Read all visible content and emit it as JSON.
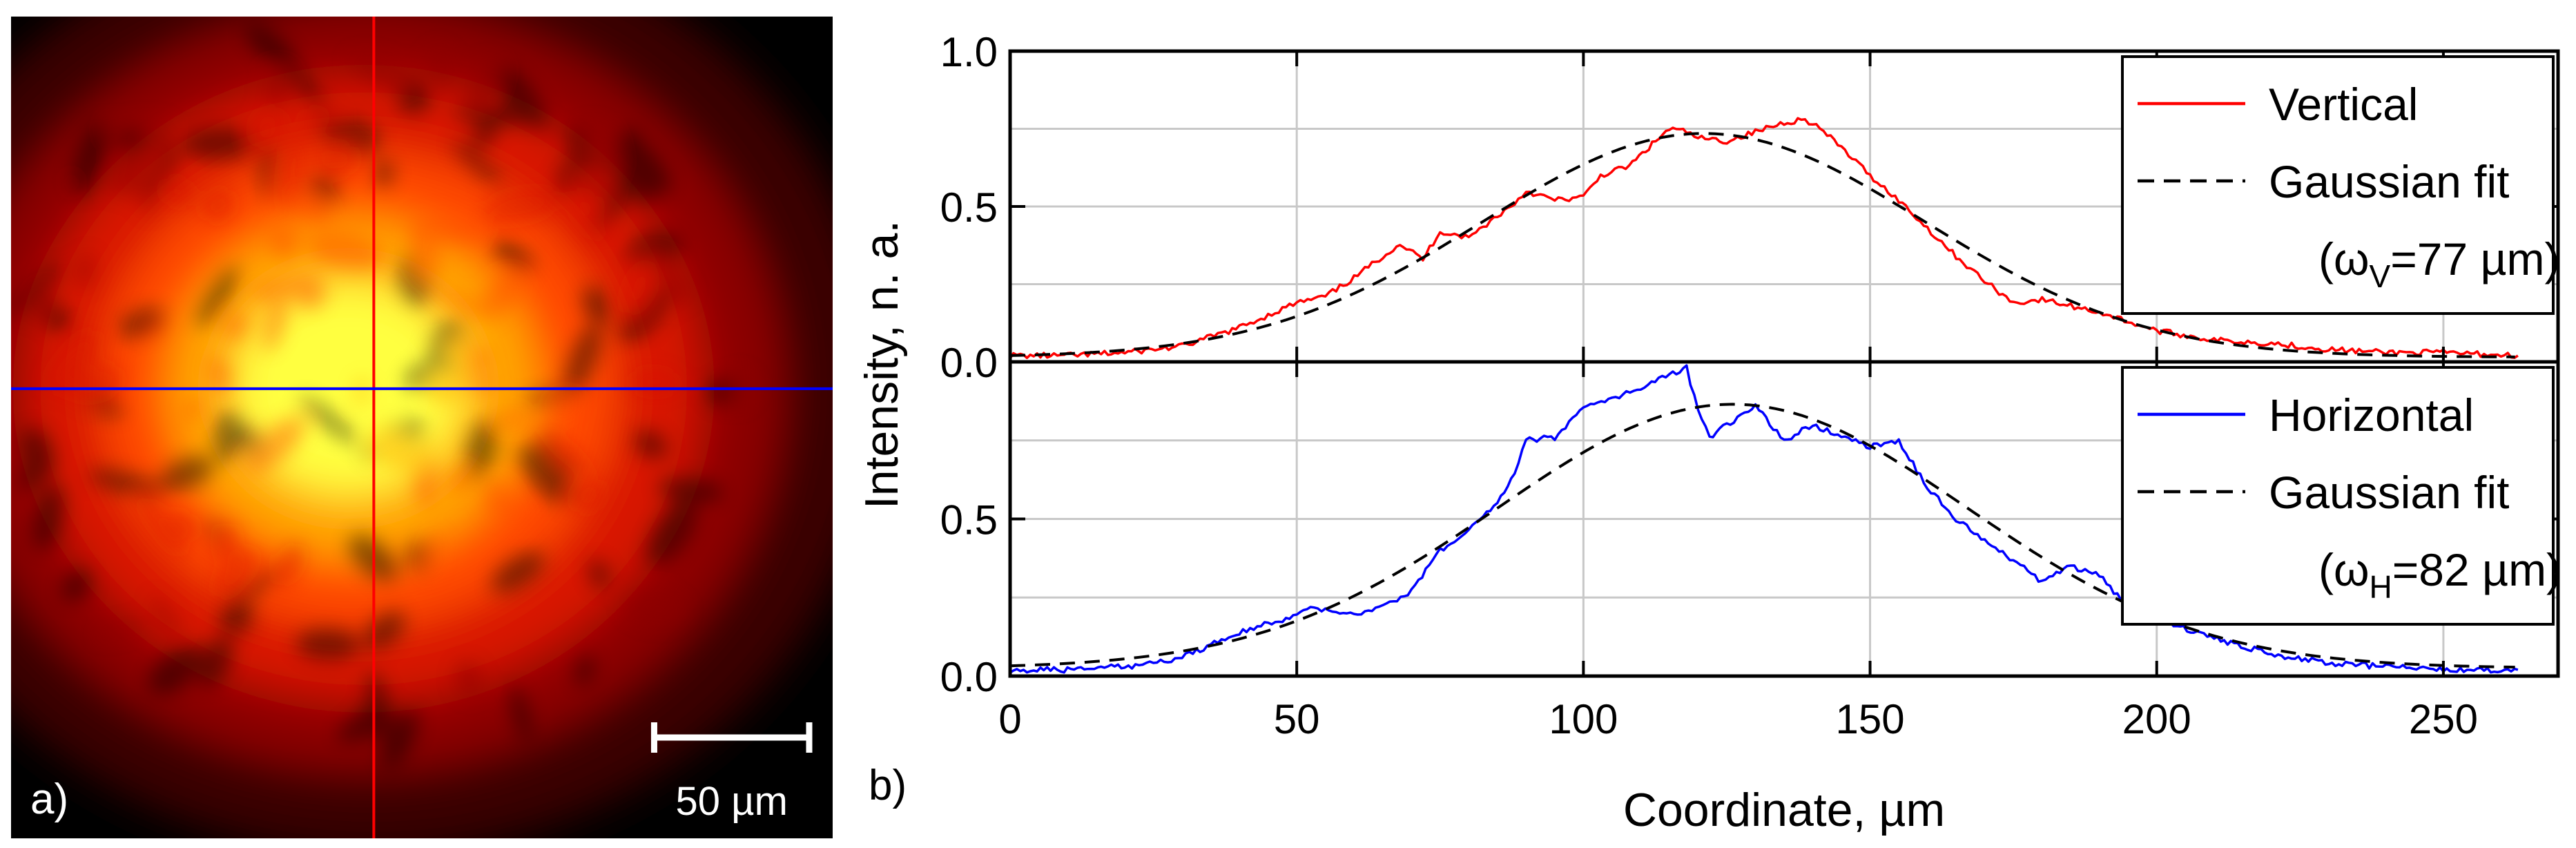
{
  "panels": {
    "a": {
      "label": "a)",
      "scale_bar_label": "50 µm",
      "scale_bar_length_um": 50,
      "field_of_view_um": 265,
      "crosshair": {
        "vertical_color": "#ff0000",
        "horizontal_color": "#0000ff"
      },
      "beam": {
        "center_um": [
          117,
          120
        ],
        "width_um": [
          82,
          77
        ],
        "colormap": [
          "#000000",
          "#3a0000",
          "#8c0000",
          "#d81300",
          "#ff4a00",
          "#ffa400",
          "#ffff40"
        ]
      }
    },
    "b": {
      "label": "b)"
    }
  },
  "chart_data": {
    "type": "line",
    "xlabel": "Coordinate, µm",
    "ylabel": "Intensity, n. a.",
    "xlim": [
      0,
      270
    ],
    "xticks": [
      0,
      50,
      100,
      150,
      200,
      250
    ],
    "x_tick_labels": [
      "0",
      "50",
      "100",
      "150",
      "200",
      "250"
    ],
    "grid": true,
    "subplots": [
      {
        "name": "top",
        "ylim": [
          0,
          1.0
        ],
        "yticks": [
          0,
          0.5,
          1.0
        ],
        "y_tick_labels": [
          "0.0",
          "0.5",
          "1.0"
        ],
        "legend": {
          "placement": "top-right",
          "entries": [
            "Vertical",
            "Gaussian fit"
          ],
          "note": {
            "prefix": "(ω",
            "sub": "V",
            "suffix": "=77 µm)"
          }
        },
        "series": [
          {
            "name": "Vertical",
            "style": "solid",
            "color": "#ff0000",
            "x": [
              0,
              10,
              20,
              30,
              35,
              40,
              45,
              50,
              55,
              60,
              65,
              68,
              72,
              75,
              80,
              85,
              88,
              90,
              95,
              100,
              103,
              108,
              112,
              115,
              118,
              120,
              125,
              130,
              135,
              138,
              140,
              145,
              150,
              155,
              160,
              165,
              170,
              175,
              180,
              185,
              190,
              195,
              200,
              210,
              220,
              230,
              240,
              250,
              263
            ],
            "y": [
              0.02,
              0.02,
              0.03,
              0.05,
              0.08,
              0.11,
              0.15,
              0.19,
              0.21,
              0.27,
              0.34,
              0.38,
              0.33,
              0.42,
              0.4,
              0.47,
              0.51,
              0.55,
              0.52,
              0.53,
              0.6,
              0.63,
              0.7,
              0.75,
              0.74,
              0.72,
              0.71,
              0.74,
              0.77,
              0.78,
              0.77,
              0.69,
              0.6,
              0.52,
              0.43,
              0.34,
              0.26,
              0.19,
              0.2,
              0.18,
              0.16,
              0.13,
              0.1,
              0.07,
              0.06,
              0.04,
              0.03,
              0.03,
              0.02
            ]
          },
          {
            "name": "Gaussian fit",
            "style": "dashed",
            "color": "#000000",
            "gaussian": {
              "amplitude": 0.72,
              "center": 121,
              "w": 77,
              "offset": 0.015
            }
          }
        ]
      },
      {
        "name": "bottom",
        "ylim": [
          0,
          1.0
        ],
        "yticks": [
          0,
          0.5
        ],
        "y_tick_labels": [
          "0.0",
          "0.5"
        ],
        "legend": {
          "placement": "top-right",
          "entries": [
            "Horizontal",
            "Gaussian fit"
          ],
          "note": {
            "prefix": "(ω",
            "sub": "H",
            "suffix": "=82 µm)"
          }
        },
        "series": [
          {
            "name": "Horizontal",
            "style": "solid",
            "color": "#0000ff",
            "x": [
              0,
              10,
              20,
              25,
              30,
              35,
              40,
              45,
              50,
              53,
              55,
              60,
              65,
              70,
              75,
              80,
              85,
              88,
              90,
              95,
              100,
              105,
              110,
              115,
              118,
              120,
              122,
              125,
              130,
              135,
              140,
              145,
              150,
              155,
              160,
              165,
              170,
              175,
              180,
              185,
              190,
              195,
              200,
              210,
              220,
              230,
              240,
              250,
              263
            ],
            "y": [
              0.02,
              0.02,
              0.03,
              0.04,
              0.06,
              0.1,
              0.14,
              0.17,
              0.19,
              0.22,
              0.21,
              0.2,
              0.22,
              0.27,
              0.4,
              0.47,
              0.55,
              0.65,
              0.75,
              0.76,
              0.85,
              0.88,
              0.92,
              0.96,
              0.98,
              0.84,
              0.76,
              0.8,
              0.86,
              0.75,
              0.8,
              0.76,
              0.73,
              0.75,
              0.6,
              0.5,
              0.43,
              0.37,
              0.3,
              0.35,
              0.32,
              0.22,
              0.18,
              0.12,
              0.07,
              0.04,
              0.03,
              0.02,
              0.02
            ]
          },
          {
            "name": "Gaussian fit",
            "style": "dashed",
            "color": "#000000",
            "gaussian": {
              "amplitude": 0.84,
              "center": 126,
              "w": 82,
              "offset": 0.025
            }
          }
        ]
      }
    ]
  }
}
